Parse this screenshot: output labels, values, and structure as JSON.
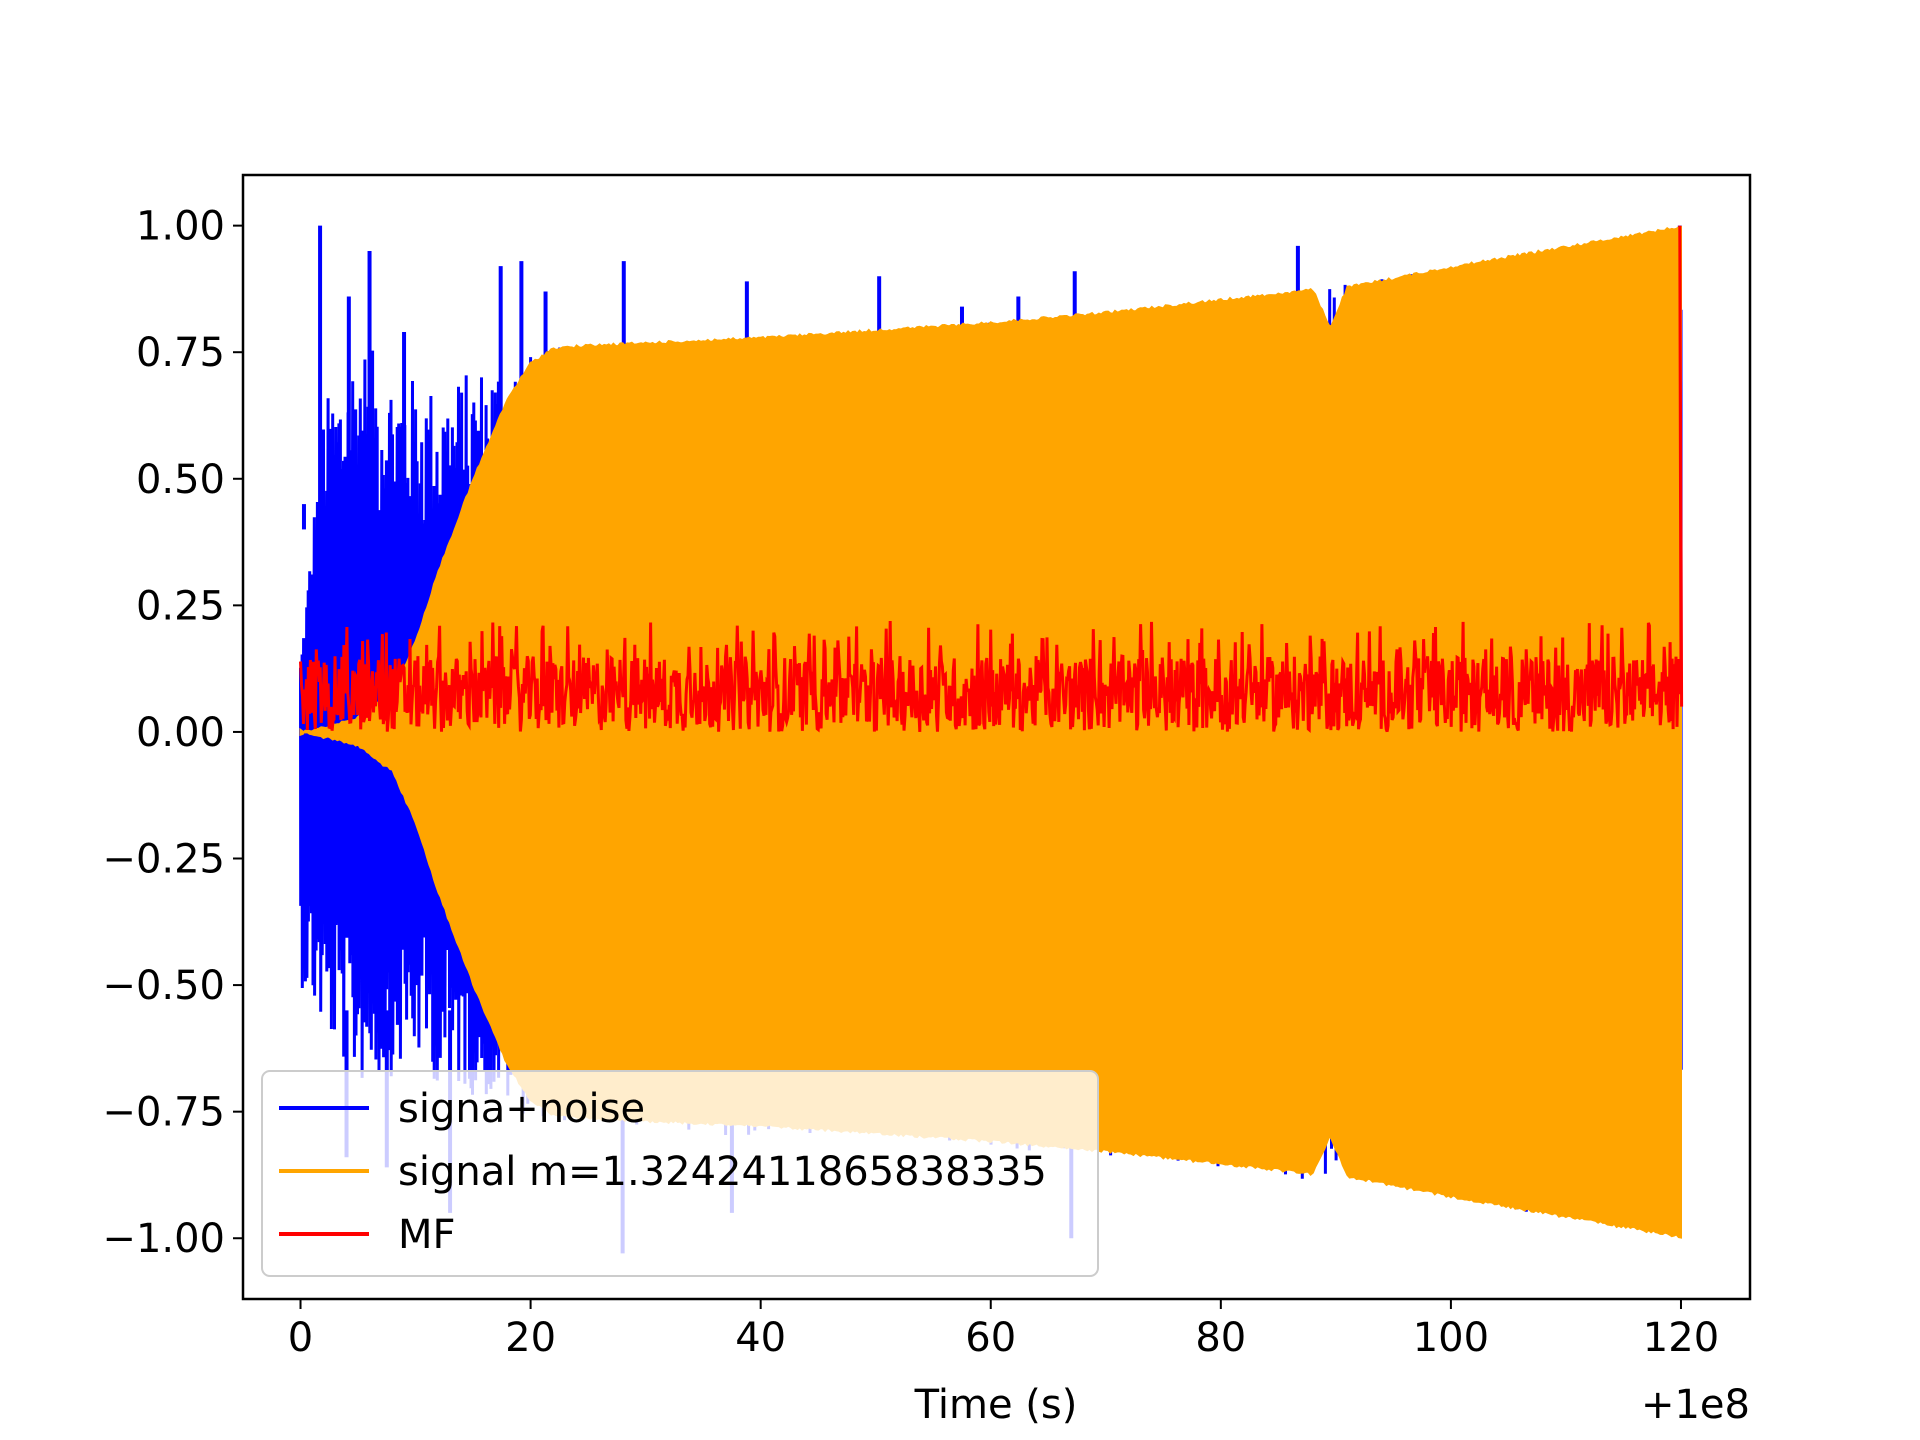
{
  "chart_data": {
    "type": "line",
    "title": "",
    "xlabel": "Time (s)",
    "ylabel": "",
    "x_offset_label": "+1e8",
    "xlim": [
      -5,
      126
    ],
    "ylim": [
      -1.12,
      1.1
    ],
    "x_ticks": [
      0,
      20,
      40,
      60,
      80,
      100,
      120
    ],
    "x_tick_labels": [
      "0",
      "20",
      "40",
      "60",
      "80",
      "100",
      "120"
    ],
    "y_ticks": [
      1.0,
      0.75,
      0.5,
      0.25,
      0.0,
      -0.25,
      -0.5,
      -0.75,
      -1.0
    ],
    "y_tick_labels": [
      "1.00",
      "0.75",
      "0.50",
      "0.25",
      "0.00",
      "−0.25",
      "−0.50",
      "−0.75",
      "−1.00"
    ],
    "grid": false,
    "legend_position": "lower-left",
    "series": [
      {
        "name": "signa+noise",
        "color": "#0000ff",
        "x_range": [
          0,
          120
        ],
        "envelope_x": [
          0,
          2,
          5,
          8,
          10,
          12,
          15,
          18,
          20,
          22,
          25,
          30,
          40,
          50,
          60,
          70,
          80,
          90,
          100,
          110,
          120
        ],
        "envelope_upper": [
          0.15,
          0.65,
          0.78,
          0.72,
          0.7,
          0.68,
          0.72,
          0.76,
          0.75,
          0.76,
          0.77,
          0.78,
          0.78,
          0.79,
          0.81,
          0.83,
          0.86,
          0.88,
          0.92,
          0.96,
          1.0
        ],
        "envelope_lower": [
          -0.5,
          -0.6,
          -0.7,
          -0.68,
          -0.65,
          -0.7,
          -0.72,
          -0.75,
          -0.76,
          -0.77,
          -0.78,
          -0.79,
          -0.8,
          -0.81,
          -0.83,
          -0.85,
          -0.87,
          -0.89,
          -0.93,
          -0.96,
          -1.0
        ],
        "spikes_x": [
          0.3,
          1.7,
          4.2,
          6.0,
          9.0,
          17.4,
          19.2,
          21.3,
          28.1,
          38.8,
          50.3,
          57.5,
          62.4,
          67.3,
          86.7,
          119.9
        ],
        "spikes_y": [
          0.45,
          1.0,
          0.86,
          0.95,
          0.79,
          0.92,
          0.93,
          0.87,
          0.93,
          0.89,
          0.9,
          0.84,
          0.86,
          0.91,
          0.96,
          1.0
        ],
        "low_spikes_x": [
          4.0,
          7.5,
          13.0,
          28.0,
          37.5,
          67.0
        ],
        "low_spikes_y": [
          -0.84,
          -0.86,
          -0.95,
          -1.03,
          -0.95,
          -1.0
        ]
      },
      {
        "name": "signal m=1.3242411865838335",
        "color": "#ffa500",
        "x_range": [
          0,
          120
        ],
        "envelope_x": [
          0,
          5,
          8,
          10,
          12,
          15,
          18,
          20,
          22,
          25,
          30,
          40,
          50,
          60,
          70,
          80,
          88,
          89.5,
          91,
          100,
          110,
          120
        ],
        "envelope_upper": [
          0.0,
          0.03,
          0.08,
          0.18,
          0.32,
          0.5,
          0.66,
          0.73,
          0.76,
          0.765,
          0.77,
          0.78,
          0.795,
          0.81,
          0.83,
          0.855,
          0.875,
          0.8,
          0.88,
          0.92,
          0.96,
          1.0
        ],
        "envelope_lower": [
          0.0,
          -0.03,
          -0.08,
          -0.18,
          -0.32,
          -0.5,
          -0.66,
          -0.73,
          -0.76,
          -0.765,
          -0.77,
          -0.78,
          -0.795,
          -0.81,
          -0.83,
          -0.855,
          -0.875,
          -0.8,
          -0.88,
          -0.92,
          -0.96,
          -1.0
        ]
      },
      {
        "name": "MF",
        "color": "#ff0000",
        "x_range": [
          0,
          120
        ],
        "baseline": 0.05,
        "band": [
          0.0,
          0.15
        ],
        "peak": {
          "x": 119.9,
          "y": 1.0
        }
      }
    ]
  }
}
